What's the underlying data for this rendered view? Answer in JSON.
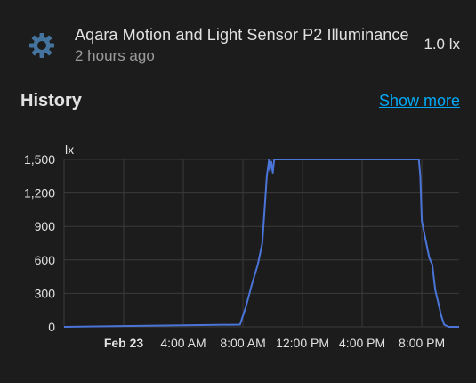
{
  "entity": {
    "icon": "brightness-gear-icon",
    "name": "Aqara Motion and Light Sensor P2 Illuminance",
    "last_changed": "2 hours ago",
    "state": "1.0 lx"
  },
  "history": {
    "title": "History",
    "show_more_label": "Show more"
  },
  "colors": {
    "background": "#1c1c1c",
    "line": "#4a74d8",
    "link": "#03a9f4",
    "grid": "#3a3a3a"
  },
  "chart_data": {
    "type": "line",
    "ylabel": "lx",
    "ylim": [
      0,
      1500
    ],
    "yticks": [
      "0",
      "300",
      "600",
      "900",
      "1,200",
      "1,500"
    ],
    "ytick_values": [
      0,
      300,
      600,
      900,
      1200,
      1500
    ],
    "xlim_hours": [
      -4,
      22.5
    ],
    "xticks": [
      {
        "label": "Feb 23",
        "hour": 0,
        "bold": true
      },
      {
        "label": "4:00 AM",
        "hour": 4,
        "bold": false
      },
      {
        "label": "8:00 AM",
        "hour": 8,
        "bold": false
      },
      {
        "label": "12:00 PM",
        "hour": 12,
        "bold": false
      },
      {
        "label": "4:00 PM",
        "hour": 16,
        "bold": false
      },
      {
        "label": "8:00 PM",
        "hour": 20,
        "bold": false
      }
    ],
    "grid": true,
    "series": [
      {
        "x_hours": [
          -4,
          7.8,
          8.2,
          8.6,
          9.0,
          9.3,
          9.6,
          9.75,
          9.8,
          9.9,
          10.0,
          10.1,
          10.2,
          10.4,
          19.8,
          19.9,
          20.0,
          20.3,
          20.5,
          20.7,
          20.9,
          21.1,
          21.3,
          21.5,
          21.8,
          22.5
        ],
        "y": [
          0,
          20,
          180,
          380,
          560,
          750,
          1350,
          1500,
          1400,
          1480,
          1380,
          1500,
          1500,
          1500,
          1500,
          1350,
          950,
          750,
          620,
          560,
          330,
          220,
          100,
          20,
          0,
          0
        ]
      }
    ]
  }
}
